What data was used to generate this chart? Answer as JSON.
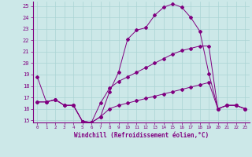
{
  "xlabel": "Windchill (Refroidissement éolien,°C)",
  "background_color": "#cce8e8",
  "line_color": "#800080",
  "grid_color": "#aad4d4",
  "xlim": [
    -0.5,
    23.5
  ],
  "ylim": [
    14.8,
    25.4
  ],
  "yticks": [
    15,
    16,
    17,
    18,
    19,
    20,
    21,
    22,
    23,
    24,
    25
  ],
  "xticks": [
    0,
    1,
    2,
    3,
    4,
    5,
    6,
    7,
    8,
    9,
    10,
    11,
    12,
    13,
    14,
    15,
    16,
    17,
    18,
    19,
    20,
    21,
    22,
    23
  ],
  "series": [
    {
      "x": [
        0,
        1,
        2,
        3,
        4,
        5,
        6,
        7,
        8,
        9,
        10,
        11,
        12,
        13,
        14,
        15,
        16,
        17,
        18,
        19,
        20,
        21,
        22,
        23
      ],
      "y": [
        18.8,
        16.6,
        16.8,
        16.3,
        16.3,
        14.9,
        14.8,
        15.3,
        17.5,
        19.2,
        22.1,
        22.9,
        23.1,
        24.2,
        24.9,
        25.2,
        24.9,
        24.0,
        22.8,
        19.1,
        16.0,
        16.3,
        16.3,
        16.0
      ]
    },
    {
      "x": [
        0,
        1,
        2,
        3,
        4,
        5,
        6,
        7,
        8,
        9,
        10,
        11,
        12,
        13,
        14,
        15,
        16,
        17,
        18,
        19,
        20,
        21,
        22,
        23
      ],
      "y": [
        16.6,
        16.6,
        16.8,
        16.3,
        16.3,
        14.9,
        14.8,
        16.5,
        17.8,
        18.4,
        18.8,
        19.2,
        19.6,
        20.0,
        20.4,
        20.8,
        21.1,
        21.3,
        21.5,
        21.5,
        16.0,
        16.3,
        16.3,
        16.0
      ]
    },
    {
      "x": [
        0,
        1,
        2,
        3,
        4,
        5,
        6,
        7,
        8,
        9,
        10,
        11,
        12,
        13,
        14,
        15,
        16,
        17,
        18,
        19,
        20,
        21,
        22,
        23
      ],
      "y": [
        16.6,
        16.6,
        16.8,
        16.3,
        16.3,
        14.9,
        14.8,
        15.3,
        16.0,
        16.3,
        16.5,
        16.7,
        16.9,
        17.1,
        17.3,
        17.5,
        17.7,
        17.9,
        18.1,
        18.3,
        16.0,
        16.3,
        16.3,
        16.0
      ]
    }
  ]
}
